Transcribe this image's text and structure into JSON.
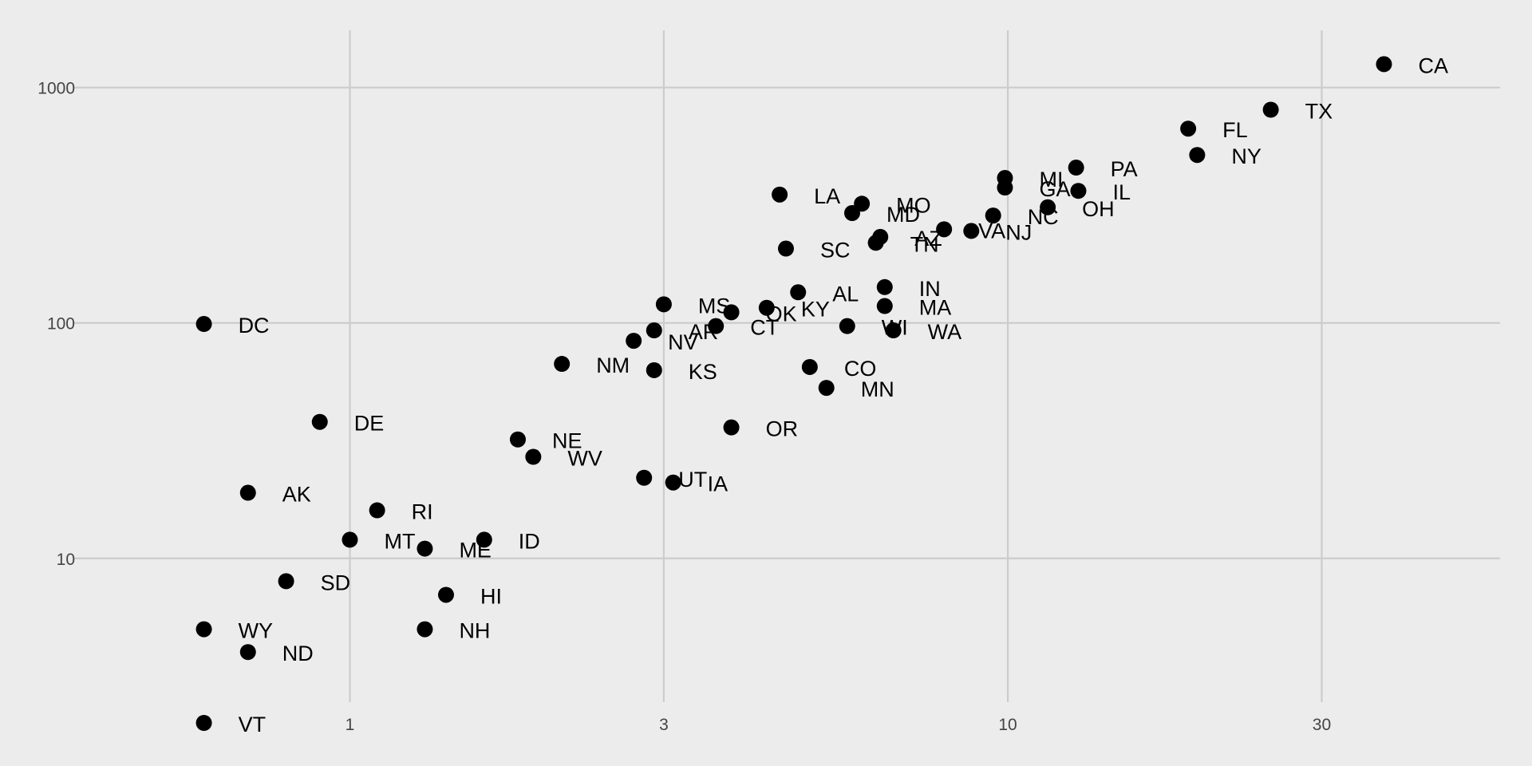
{
  "chart_data": {
    "type": "scatter",
    "title": "",
    "xlabel": "",
    "ylabel": "",
    "x_scale": "log10",
    "y_scale": "log10",
    "x_ticks": [
      1,
      3,
      10,
      30
    ],
    "y_ticks": [
      10,
      100,
      1000
    ],
    "x_tick_labels": [
      "1",
      "3",
      "10",
      "30"
    ],
    "y_tick_labels": [
      "10",
      "100",
      "1000"
    ],
    "xlim": [
      0.38,
      56
    ],
    "ylim": [
      2.45,
      1750
    ],
    "grid": true,
    "colors": {
      "background": "#ececec",
      "grid": "#cccccc",
      "point": "#000000",
      "tick_text": "#444444"
    },
    "points": [
      {
        "label": "CA",
        "x": 37.3,
        "y": 1257
      },
      {
        "label": "TX",
        "x": 25.1,
        "y": 805
      },
      {
        "label": "FL",
        "x": 18.8,
        "y": 669
      },
      {
        "label": "NY",
        "x": 19.4,
        "y": 517
      },
      {
        "label": "PA",
        "x": 12.7,
        "y": 457
      },
      {
        "label": "IL",
        "x": 12.8,
        "y": 364
      },
      {
        "label": "OH",
        "x": 11.5,
        "y": 310
      },
      {
        "label": "MI",
        "x": 9.9,
        "y": 413
      },
      {
        "label": "GA",
        "x": 9.9,
        "y": 376
      },
      {
        "label": "NC",
        "x": 9.5,
        "y": 286
      },
      {
        "label": "NJ",
        "x": 8.8,
        "y": 246
      },
      {
        "label": "VA",
        "x": 8.0,
        "y": 250
      },
      {
        "label": "LA",
        "x": 4.5,
        "y": 351
      },
      {
        "label": "MO",
        "x": 6.0,
        "y": 321
      },
      {
        "label": "MD",
        "x": 5.8,
        "y": 293
      },
      {
        "label": "AZ",
        "x": 6.4,
        "y": 232
      },
      {
        "label": "TN",
        "x": 6.3,
        "y": 219
      },
      {
        "label": "SC",
        "x": 4.6,
        "y": 207
      },
      {
        "label": "IN",
        "x": 6.5,
        "y": 142
      },
      {
        "label": "AL",
        "x": 4.8,
        "y": 135
      },
      {
        "label": "MA",
        "x": 6.5,
        "y": 118
      },
      {
        "label": "KY",
        "x": 4.3,
        "y": 116
      },
      {
        "label": "MS",
        "x": 3.0,
        "y": 120
      },
      {
        "label": "OK",
        "x": 3.8,
        "y": 111
      },
      {
        "label": "CT",
        "x": 3.6,
        "y": 97
      },
      {
        "label": "AR",
        "x": 2.9,
        "y": 93
      },
      {
        "label": "WI",
        "x": 5.7,
        "y": 97
      },
      {
        "label": "WA",
        "x": 6.7,
        "y": 93
      },
      {
        "label": "NV",
        "x": 2.7,
        "y": 84
      },
      {
        "label": "NM",
        "x": 2.1,
        "y": 67
      },
      {
        "label": "KS",
        "x": 2.9,
        "y": 63
      },
      {
        "label": "CO",
        "x": 5.0,
        "y": 65
      },
      {
        "label": "MN",
        "x": 5.3,
        "y": 53
      },
      {
        "label": "OR",
        "x": 3.8,
        "y": 36
      },
      {
        "label": "NE",
        "x": 1.8,
        "y": 32
      },
      {
        "label": "WV",
        "x": 1.9,
        "y": 27
      },
      {
        "label": "UT",
        "x": 2.8,
        "y": 22
      },
      {
        "label": "IA",
        "x": 3.1,
        "y": 21
      },
      {
        "label": "DC",
        "x": 0.6,
        "y": 99
      },
      {
        "label": "DE",
        "x": 0.9,
        "y": 38
      },
      {
        "label": "AK",
        "x": 0.7,
        "y": 19
      },
      {
        "label": "RI",
        "x": 1.1,
        "y": 16
      },
      {
        "label": "MT",
        "x": 1.0,
        "y": 12
      },
      {
        "label": "ME",
        "x": 1.3,
        "y": 11
      },
      {
        "label": "ID",
        "x": 1.6,
        "y": 12
      },
      {
        "label": "SD",
        "x": 0.8,
        "y": 8
      },
      {
        "label": "HI",
        "x": 1.4,
        "y": 7
      },
      {
        "label": "NH",
        "x": 1.3,
        "y": 5
      },
      {
        "label": "WY",
        "x": 0.6,
        "y": 5
      },
      {
        "label": "ND",
        "x": 0.7,
        "y": 4
      },
      {
        "label": "VT",
        "x": 0.6,
        "y": 2
      }
    ]
  }
}
